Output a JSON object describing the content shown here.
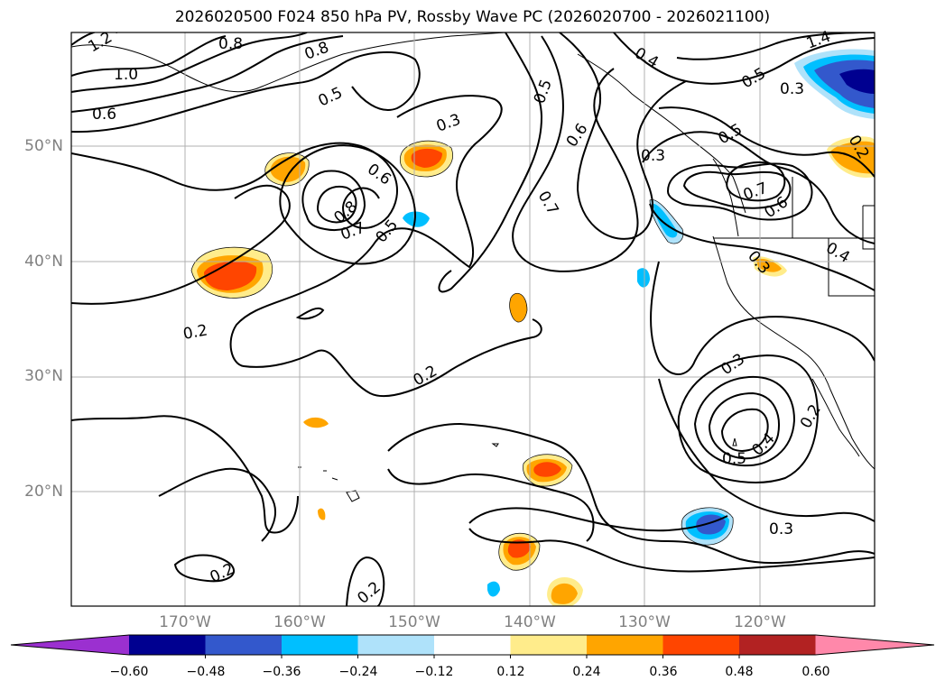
{
  "title": "2026020500 F024 850 hPa PV, Rossby Wave PC (2026020700 - 2026021100)",
  "lat_labels": [
    "50°N",
    "40°N",
    "30°N",
    "20°N"
  ],
  "lon_labels": [
    "170°W",
    "160°W",
    "150°W",
    "140°W",
    "130°W",
    "120°W"
  ],
  "colorbar": {
    "tick_labels": [
      "−0.60",
      "−0.48",
      "−0.36",
      "−0.24",
      "−0.12",
      "0.12",
      "0.24",
      "0.36",
      "0.48",
      "0.60"
    ],
    "bins": [
      {
        "color": "#9b30d0"
      },
      {
        "color": "#000090"
      },
      {
        "color": "#3358cc"
      },
      {
        "color": "#00bfff"
      },
      {
        "color": "#afe2fa"
      },
      {
        "color": "#ffffff"
      },
      {
        "color": "#ffec8b"
      },
      {
        "color": "#ffa500"
      },
      {
        "color": "#ff4500"
      },
      {
        "color": "#b22222"
      },
      {
        "color": "#ff88aa"
      }
    ]
  },
  "contour_labels": [
    "1.2",
    "0.8",
    "0.8",
    "1.0",
    "0.6",
    "0.5",
    "0.4",
    "0.3",
    "0.6",
    "0.8",
    "0.7",
    "0.5",
    "0.5",
    "0.6",
    "0.7",
    "0.3",
    "1.4",
    "0.5",
    "0.3",
    "0.2",
    "0.5",
    "0.7",
    "0.6",
    "0.4",
    "0.3",
    "0.2",
    "0.2",
    "0.3",
    "0.4",
    "0.5",
    "0.2",
    "0.3",
    "0.2",
    "0.2"
  ]
}
